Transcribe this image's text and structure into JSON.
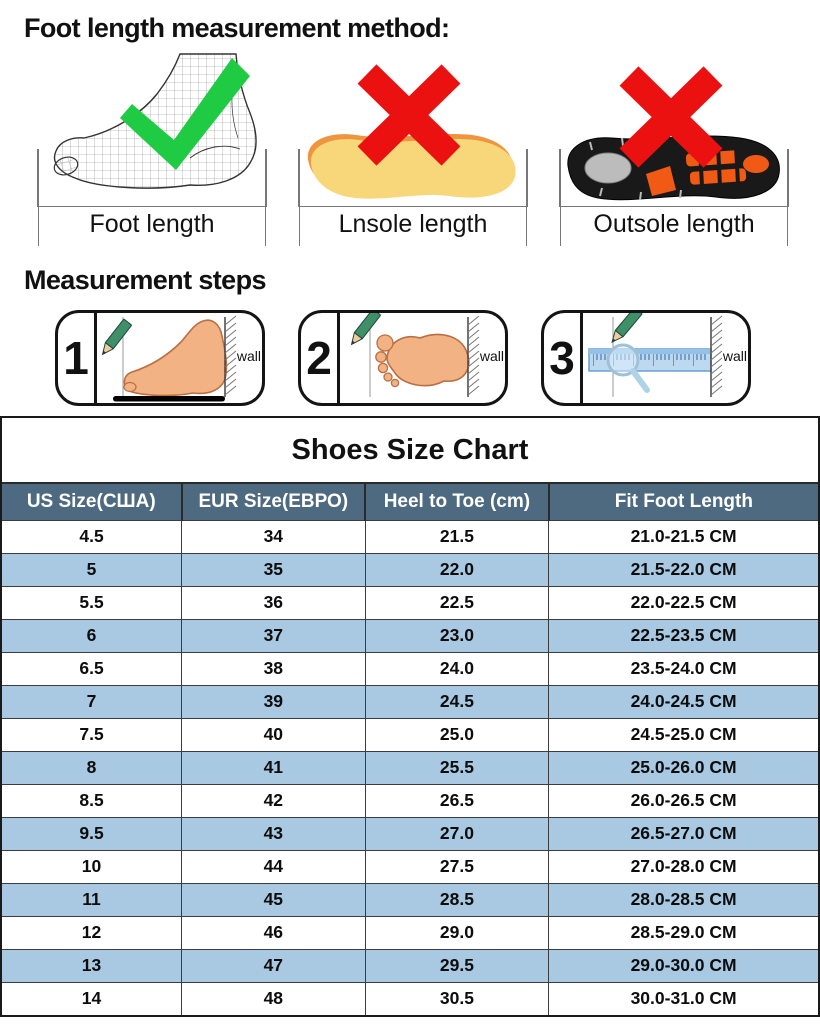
{
  "method": {
    "title": "Foot length measurement method:",
    "figures": [
      {
        "id": "foot-length",
        "label": "Foot length",
        "mark": "check"
      },
      {
        "id": "insole-length",
        "label": "Lnsole length",
        "mark": "cross"
      },
      {
        "id": "outsole-length",
        "label": "Outsole length",
        "mark": "cross"
      }
    ]
  },
  "steps": {
    "title": "Measurement steps",
    "items": [
      {
        "number": "1",
        "wall_label": "wall"
      },
      {
        "number": "2",
        "wall_label": "wall"
      },
      {
        "number": "3",
        "wall_label": "wall"
      }
    ]
  },
  "size_chart": {
    "title": "Shoes Size Chart",
    "columns": [
      "US Size(США)",
      "EUR Size(ЕВРО)",
      "Heel to Toe (cm)",
      "Fit Foot Length"
    ],
    "rows": [
      [
        "4.5",
        "34",
        "21.5",
        "21.0-21.5 CM"
      ],
      [
        "5",
        "35",
        "22.0",
        "21.5-22.0 CM"
      ],
      [
        "5.5",
        "36",
        "22.5",
        "22.0-22.5 CM"
      ],
      [
        "6",
        "37",
        "23.0",
        "22.5-23.5 CM"
      ],
      [
        "6.5",
        "38",
        "24.0",
        "23.5-24.0 CM"
      ],
      [
        "7",
        "39",
        "24.5",
        "24.0-24.5 CM"
      ],
      [
        "7.5",
        "40",
        "25.0",
        "24.5-25.0 CM"
      ],
      [
        "8",
        "41",
        "25.5",
        "25.0-26.0 CM"
      ],
      [
        "8.5",
        "42",
        "26.5",
        "26.0-26.5 CM"
      ],
      [
        "9.5",
        "43",
        "27.0",
        "26.5-27.0 CM"
      ],
      [
        "10",
        "44",
        "27.5",
        "27.0-28.0 CM"
      ],
      [
        "11",
        "45",
        "28.5",
        "28.0-28.5 CM"
      ],
      [
        "12",
        "46",
        "29.0",
        "28.5-29.0 CM"
      ],
      [
        "13",
        "47",
        "29.5",
        "29.0-30.0 CM"
      ],
      [
        "14",
        "48",
        "30.5",
        "30.0-31.0 CM"
      ]
    ]
  },
  "chart_data": {
    "type": "table",
    "title": "Shoes Size Chart",
    "columns": [
      "US Size(США)",
      "EUR Size(ЕВРО)",
      "Heel to Toe (cm)",
      "Fit Foot Length"
    ],
    "rows": [
      [
        "4.5",
        "34",
        "21.5",
        "21.0-21.5 CM"
      ],
      [
        "5",
        "35",
        "22.0",
        "21.5-22.0 CM"
      ],
      [
        "5.5",
        "36",
        "22.5",
        "22.0-22.5 CM"
      ],
      [
        "6",
        "37",
        "23.0",
        "22.5-23.5 CM"
      ],
      [
        "6.5",
        "38",
        "24.0",
        "23.5-24.0 CM"
      ],
      [
        "7",
        "39",
        "24.5",
        "24.0-24.5 CM"
      ],
      [
        "7.5",
        "40",
        "25.0",
        "24.5-25.0 CM"
      ],
      [
        "8",
        "41",
        "25.5",
        "25.0-26.0 CM"
      ],
      [
        "8.5",
        "42",
        "26.5",
        "26.0-26.5 CM"
      ],
      [
        "9.5",
        "43",
        "27.0",
        "26.5-27.0 CM"
      ],
      [
        "10",
        "44",
        "27.5",
        "27.0-28.0 CM"
      ],
      [
        "11",
        "45",
        "28.5",
        "28.0-28.5 CM"
      ],
      [
        "12",
        "46",
        "29.0",
        "28.5-29.0 CM"
      ],
      [
        "13",
        "47",
        "29.5",
        "29.0-30.0 CM"
      ],
      [
        "14",
        "48",
        "30.5",
        "30.0-31.0 CM"
      ]
    ]
  },
  "colors": {
    "header_bg": "#4d6a81",
    "row_alt_bg": "#a9c9e3",
    "cross_red": "#ea1110",
    "check_green": "#1ecb43",
    "insole_yellow": "#f8d77b",
    "insole_edge_orange": "#ef9540",
    "outsole_orange": "#f15a14",
    "skin": "#f2b284",
    "pencil_green": "#3f8f68",
    "ruler_blue": "#bdd9f0"
  }
}
